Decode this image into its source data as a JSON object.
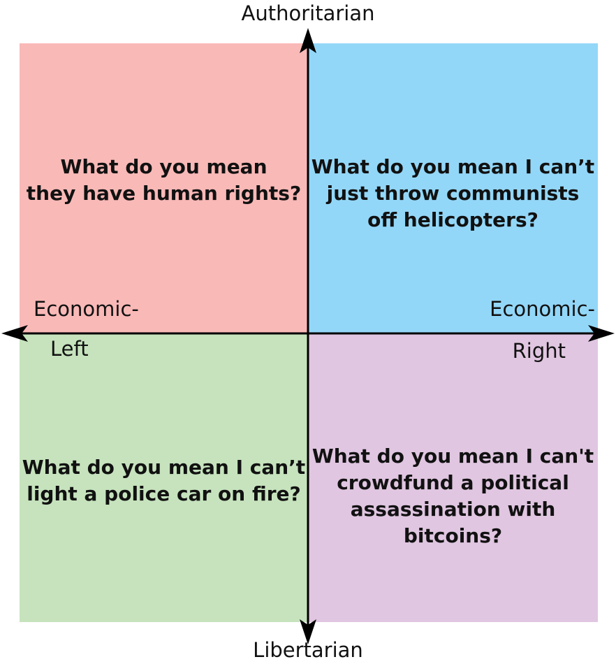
{
  "axes": {
    "top": "Authoritarian",
    "bottom": "Libertarian",
    "left_line1": "Economic-",
    "left_line2": "Left",
    "right_line1": "Economic-",
    "right_line2": "Right"
  },
  "quadrants": {
    "top_left": {
      "text": "What do you mean\nthey have human rights?",
      "color": "#f9b9b7"
    },
    "top_right": {
      "text": "What do you mean I can’t\njust throw communists\noff helicopters?",
      "color": "#93d7f8"
    },
    "bottom_left": {
      "text": "What do you mean I can’t\nlight a police car on fire?",
      "color": "#c6e3bd"
    },
    "bottom_right": {
      "text": "What do you mean I can't\ncrowdfund a political\nassassination with bitcoins?",
      "color": "#e0c6e1"
    }
  },
  "axis_color": "#000000"
}
